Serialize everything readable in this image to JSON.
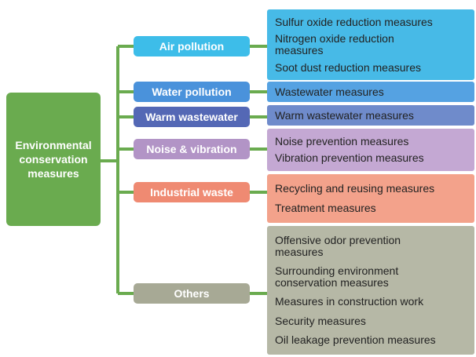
{
  "root": {
    "label": "Environmental conservation measures",
    "color": "#6aab4f"
  },
  "branches": [
    {
      "label": "Air pollution",
      "color": "#3dbde9",
      "items_color": "#47bae7",
      "items": [
        "Sulfur oxide reduction measures",
        "Nitrogen oxide reduction measures",
        "Soot dust reduction measures"
      ]
    },
    {
      "label": "Water pollution",
      "color": "#4a92db",
      "items_color": "#55a2e2",
      "items": [
        "Wastewater measures"
      ]
    },
    {
      "label": "Warm wastewater",
      "color": "#5468b5",
      "items_color": "#6f8bcb",
      "items": [
        "Warm wastewater measures"
      ]
    },
    {
      "label": "Noise & vibration",
      "color": "#b294c6",
      "items_color": "#c4a8d3",
      "items": [
        "Noise prevention measures",
        "Vibration prevention measures"
      ]
    },
    {
      "label": "Industrial waste",
      "color": "#ef8a72",
      "items_color": "#f3a28b",
      "items": [
        "Recycling and reusing measures",
        "Treatment measures"
      ]
    },
    {
      "label": "Others",
      "color": "#a7a995",
      "items_color": "#b6b8a6",
      "items": [
        "Offensive odor prevention measures",
        "Surrounding environment conservation measures",
        "Measures in construction work",
        "Security measures",
        "Oil leakage prevention measures"
      ]
    }
  ]
}
